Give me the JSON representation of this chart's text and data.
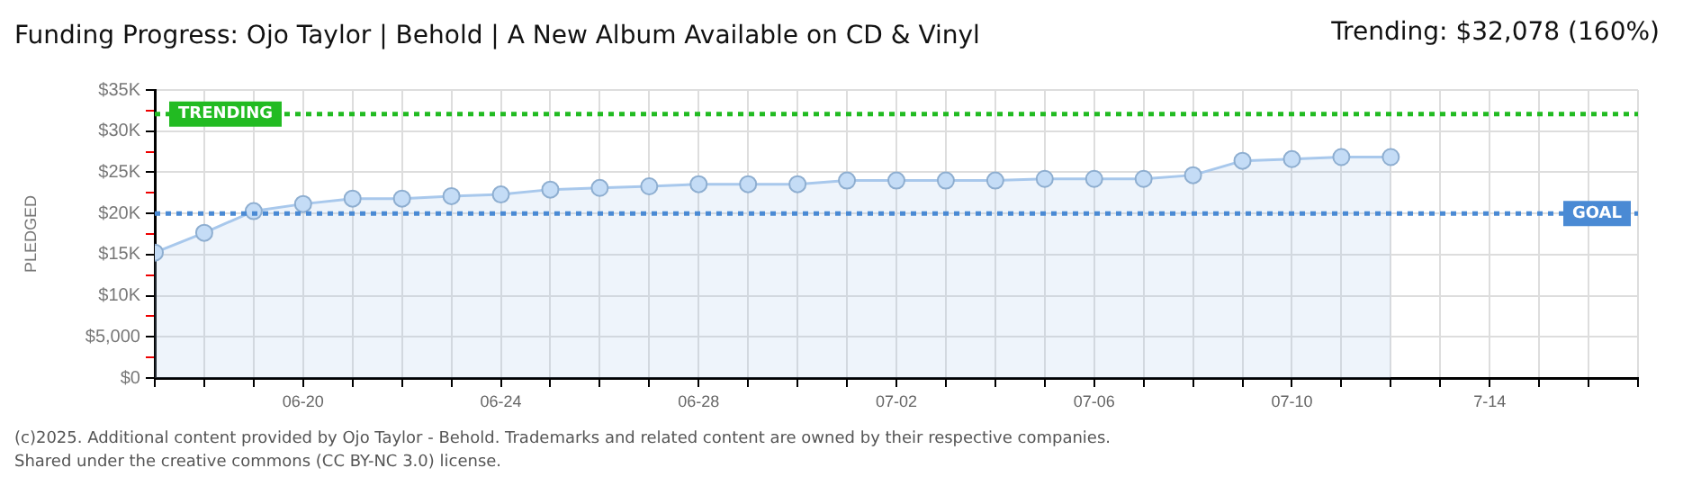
{
  "chart_data": {
    "type": "area",
    "title": "Funding Progress: Ojo Taylor | Behold | A New Album Available on CD & Vinyl",
    "subtitle": "Trending: $32,078 (160%)",
    "ylabel": "PLEDGED",
    "x": [
      "--06-17",
      "--06-18",
      "--06-19",
      "--06-20",
      "--06-21",
      "--06-22",
      "--06-23",
      "--06-24",
      "--06-25",
      "--06-26",
      "--06-27",
      "--06-28",
      "--06-29",
      "--06-30",
      "--07-01",
      "--07-02",
      "--07-03",
      "--07-04",
      "--07-05",
      "--07-06",
      "--07-07",
      "--07-08",
      "--07-09",
      "--07-10",
      "--07-11",
      "--07-12"
    ],
    "series": [
      {
        "color": "#a8c8ec",
        "values": [
          15240,
          17650,
          20280,
          21150,
          21800,
          21800,
          22100,
          22300,
          22900,
          23100,
          23300,
          23550,
          23550,
          23550,
          24000,
          24000,
          24000,
          24000,
          24200,
          24200,
          24200,
          24650,
          26400,
          26600,
          26850,
          26850
        ]
      }
    ],
    "xlim": [
      "--06-17",
      "--07-17"
    ],
    "xticks": [
      {
        "value": "--06-17",
        "label": null
      },
      {
        "value": "--06-18",
        "label": null
      },
      {
        "value": "--06-19",
        "label": null
      },
      {
        "value": "--06-20",
        "label": "06-20"
      },
      {
        "value": "--06-21",
        "label": null
      },
      {
        "value": "--06-22",
        "label": null
      },
      {
        "value": "--06-23",
        "label": null
      },
      {
        "value": "--06-24",
        "label": "06-24"
      },
      {
        "value": "--06-25",
        "label": null
      },
      {
        "value": "--06-26",
        "label": null
      },
      {
        "value": "--06-27",
        "label": null
      },
      {
        "value": "--06-28",
        "label": "06-28"
      },
      {
        "value": "--06-29",
        "label": null
      },
      {
        "value": "--06-30",
        "label": null
      },
      {
        "value": "--07-01",
        "label": null
      },
      {
        "value": "--07-02",
        "label": "07-02"
      },
      {
        "value": "--07-03",
        "label": null
      },
      {
        "value": "--07-04",
        "label": null
      },
      {
        "value": "--07-05",
        "label": null
      },
      {
        "value": "--07-06",
        "label": "07-06"
      },
      {
        "value": "--07-07",
        "label": null
      },
      {
        "value": "--07-08",
        "label": null
      },
      {
        "value": "--07-09",
        "label": null
      },
      {
        "value": "--07-10",
        "label": "07-10"
      },
      {
        "value": "--07-11",
        "label": null
      },
      {
        "value": "--07-12",
        "label": null
      },
      {
        "value": "--07-13",
        "label": null
      },
      {
        "value": "--07-14",
        "label": "7-14"
      },
      {
        "value": "--07-15",
        "label": null
      },
      {
        "value": "--07-16",
        "label": null
      },
      {
        "value": "--07-17",
        "label": null
      }
    ],
    "ylim": [
      0,
      35000
    ],
    "yticks": [
      {
        "value": 0,
        "label": "$0"
      },
      {
        "value": 2500,
        "label": null
      },
      {
        "value": 5000,
        "label": "$5,000"
      },
      {
        "value": 7500,
        "label": null
      },
      {
        "value": 10000,
        "label": "$10K"
      },
      {
        "value": 12500,
        "label": null
      },
      {
        "value": 15000,
        "label": "$15K"
      },
      {
        "value": 17500,
        "label": null
      },
      {
        "value": 20000,
        "label": "$20K"
      },
      {
        "value": 22500,
        "label": null
      },
      {
        "value": 25000,
        "label": "$25K"
      },
      {
        "value": 27500,
        "label": null
      },
      {
        "value": 30000,
        "label": "$30K"
      },
      {
        "value": 32500,
        "label": null
      },
      {
        "value": 35000,
        "label": "$35K"
      }
    ],
    "ref_lines": [
      {
        "axis": "y",
        "value": 32078,
        "label": "TRENDING",
        "color": "#22bb22",
        "line_style": "dotted"
      },
      {
        "axis": "y",
        "value": 20000,
        "label": "GOAL",
        "color": "#4a8ad4",
        "line_style": "dotted"
      }
    ],
    "grid": true,
    "legend": false,
    "marker": "circle",
    "line_style": "solid",
    "annotations": [
      "(c)2025. Additional content provided by Ojo Taylor - Behold. Trademarks and related content are owned by their respective companies.",
      "Shared under the creative commons (CC BY-NC 3.0) license."
    ]
  }
}
